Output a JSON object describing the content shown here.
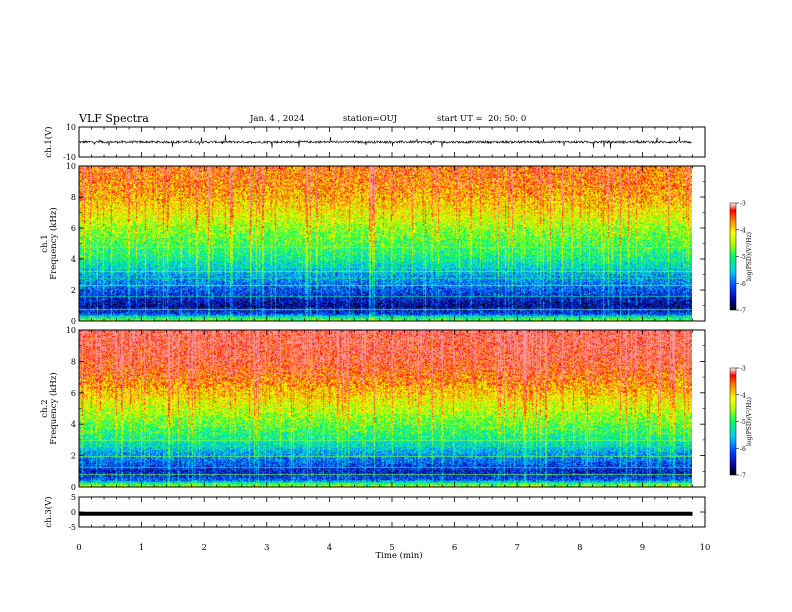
{
  "header": {
    "title": "VLF Spectra",
    "date": "Jan. 4 , 2024",
    "station": "station=OUJ",
    "start_time": "start UT =  20: 50: 0"
  },
  "chart_data": [
    {
      "type": "line",
      "panel": "ch.1 waveform",
      "ylabel": "ch.1(V)",
      "ylim": [
        -10,
        10
      ],
      "yticks": [
        "10",
        "-10"
      ],
      "x": [
        0,
        9.8
      ],
      "values_description_free": true,
      "baseline_v": 0,
      "amplitude_v": [
        -3,
        3
      ],
      "color": "#000000"
    },
    {
      "type": "heatmap",
      "panel": "ch.1 spectrogram",
      "ylabel": "ch.1\nFrequency (kHz)",
      "ylabel_lines": [
        "ch.1",
        "Frequency (kHz)"
      ],
      "ylim": [
        0,
        10
      ],
      "yticks": [
        "0",
        "2",
        "4",
        "6",
        "8",
        "10"
      ],
      "xlim": [
        0,
        10
      ],
      "data_until_min": 9.8,
      "colorbar": {
        "label": "log(PSD)(V²/Hz)",
        "range": [
          -7,
          -3
        ],
        "ticks": [
          "-3",
          "-4",
          "-5",
          "-6",
          "-7"
        ]
      },
      "green_bands_khz": [
        0.3,
        0.8,
        1.6,
        2.3,
        2.8,
        3.2,
        3.5,
        4.8
      ],
      "dark_band_khz": [
        0.3,
        2.0
      ],
      "fill_profile": [
        {
          "khz": 0.1,
          "level": -4.8
        },
        {
          "khz": 0.5,
          "level": -6.3
        },
        {
          "khz": 1.0,
          "level": -6.7
        },
        {
          "khz": 2.0,
          "level": -6.2
        },
        {
          "khz": 3.0,
          "level": -5.8
        },
        {
          "khz": 4.0,
          "level": -5.3
        },
        {
          "khz": 5.0,
          "level": -5.0
        },
        {
          "khz": 6.0,
          "level": -4.7
        },
        {
          "khz": 7.0,
          "level": -4.3
        },
        {
          "khz": 8.0,
          "level": -4.0
        },
        {
          "khz": 9.0,
          "level": -3.8
        },
        {
          "khz": 10.0,
          "level": -3.7
        }
      ]
    },
    {
      "type": "heatmap",
      "panel": "ch.2 spectrogram",
      "ylabel": "ch.2\nFrequency (kHz)",
      "ylabel_lines": [
        "ch.2",
        "Frequency (kHz)"
      ],
      "ylim": [
        0,
        10
      ],
      "yticks": [
        "0",
        "2",
        "4",
        "6",
        "8",
        "10"
      ],
      "xlim": [
        0,
        10
      ],
      "data_until_min": 9.8,
      "colorbar": {
        "label": "log(PSD)(V²/Hz)",
        "range": [
          -7,
          -3
        ],
        "ticks": [
          "-3",
          "-4",
          "-5",
          "-6",
          "-7"
        ]
      },
      "green_bands_khz": [
        0.3,
        0.8,
        1.3,
        2.0,
        2.6,
        3.0,
        3.3
      ],
      "dark_band_khz": [
        0.3,
        1.8
      ],
      "fill_profile": [
        {
          "khz": 0.1,
          "level": -4.6
        },
        {
          "khz": 0.5,
          "level": -6.2
        },
        {
          "khz": 1.0,
          "level": -6.5
        },
        {
          "khz": 2.0,
          "level": -5.9
        },
        {
          "khz": 3.0,
          "level": -5.3
        },
        {
          "khz": 4.0,
          "level": -4.9
        },
        {
          "khz": 5.0,
          "level": -4.5
        },
        {
          "khz": 6.0,
          "level": -4.1
        },
        {
          "khz": 7.0,
          "level": -3.7
        },
        {
          "khz": 8.0,
          "level": -3.4
        },
        {
          "khz": 9.0,
          "level": -3.3
        },
        {
          "khz": 10.0,
          "level": -3.2
        }
      ]
    },
    {
      "type": "line",
      "panel": "ch.3 waveform",
      "ylabel": "ch.3(V)",
      "ylim": [
        -5,
        5
      ],
      "yticks": [
        "5",
        "0",
        "-5"
      ],
      "x": [
        0,
        9.8
      ],
      "constant_v": -0.6,
      "color": "#000000"
    }
  ],
  "x_axis": {
    "label": "Time (min)",
    "ticks": [
      "0",
      "1",
      "2",
      "3",
      "4",
      "5",
      "6",
      "7",
      "8",
      "9",
      "10"
    ],
    "range": [
      0,
      10
    ]
  }
}
